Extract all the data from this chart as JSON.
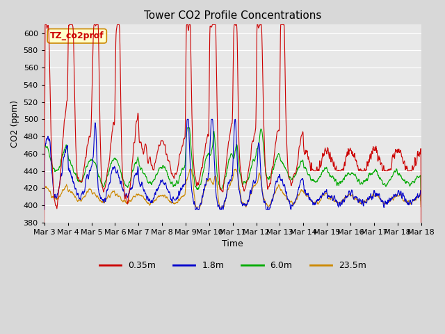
{
  "title": "Tower CO2 Profile Concentrations",
  "xlabel": "Time",
  "ylabel": "CO2 (ppm)",
  "ylim": [
    380,
    610
  ],
  "yticks": [
    380,
    400,
    420,
    440,
    460,
    480,
    500,
    520,
    540,
    560,
    580,
    600
  ],
  "xtick_labels": [
    "Mar 3",
    "Mar 4",
    "Mar 5",
    "Mar 6",
    "Mar 7",
    "Mar 8",
    "Mar 9",
    "Mar 10",
    "Mar 11",
    "Mar 12",
    "Mar 13",
    "Mar 14",
    "Mar 15",
    "Mar 16",
    "Mar 17",
    "Mar 18"
  ],
  "legend_labels": [
    "0.35m",
    "1.8m",
    "6.0m",
    "23.5m"
  ],
  "colors": [
    "#cc0000",
    "#0000cc",
    "#00aa00",
    "#cc8800"
  ],
  "annotation_text": "TZ_co2prof",
  "annotation_bg": "#ffffcc",
  "annotation_border": "#cc8800",
  "plot_bg": "#e8e8e8",
  "title_fontsize": 11,
  "axis_fontsize": 9,
  "tick_fontsize": 8,
  "legend_fontsize": 9,
  "linewidth": 0.8
}
